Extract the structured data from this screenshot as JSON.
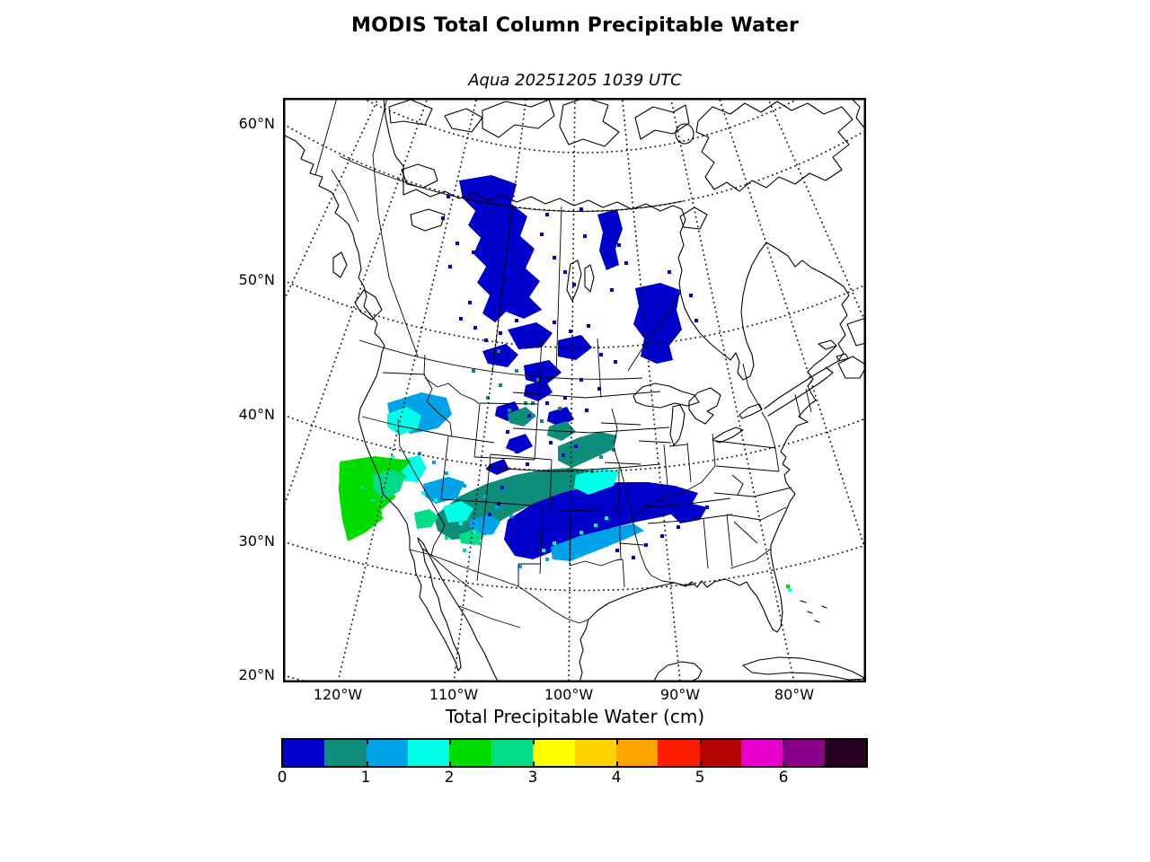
{
  "title": "MODIS Total Column Precipitable Water",
  "subtitle": "Aqua 20251205 1039 UTC",
  "map": {
    "y_ticks": [
      "60°N",
      "50°N",
      "40°N",
      "30°N",
      "20°N"
    ],
    "x_ticks": [
      "120°W",
      "110°W",
      "100°W",
      "90°W",
      "80°W"
    ]
  },
  "colorbar": {
    "title": "Total Precipitable Water (cm)",
    "tick_labels": [
      "0",
      "1",
      "2",
      "3",
      "4",
      "5",
      "6"
    ],
    "colors": [
      "#0000CC",
      "#0E8E7A",
      "#00A2E8",
      "#00FFE8",
      "#00DC00",
      "#00DC87",
      "#FFFF00",
      "#FFD300",
      "#FFA500",
      "#FB1E00",
      "#B50404",
      "#E801CE",
      "#8A0089",
      "#260020"
    ]
  },
  "chart_data": {
    "type": "heatmap",
    "title": "MODIS Total Column Precipitable Water",
    "subtitle": "Aqua 20251205 1039 UTC",
    "projection": "conic over North America",
    "x_tick_labels": [
      "120°W",
      "110°W",
      "100°W",
      "90°W",
      "80°W"
    ],
    "y_tick_labels": [
      "60°N",
      "50°N",
      "40°N",
      "30°N",
      "20°N"
    ],
    "xlim_lon": [
      -130,
      -65
    ],
    "ylim_lat": [
      20,
      62
    ],
    "grid": "dotted graticule every 10 degrees",
    "colorbar": {
      "label": "Total Precipitable Water (cm)",
      "tick_values": [
        0,
        1,
        2,
        3,
        4,
        5,
        6
      ],
      "range_cm": [
        0,
        7
      ],
      "segment_step_cm": 0.5,
      "segment_colors": [
        "#0000CC",
        "#0E8E7A",
        "#00A2E8",
        "#00FFE8",
        "#00DC00",
        "#00DC87",
        "#FFFF00",
        "#FFD300",
        "#FFA500",
        "#FB1E00",
        "#B50404",
        "#E801CE",
        "#8A0089",
        "#260020"
      ],
      "legend_position": "bottom horizontal"
    },
    "annotations": [
      {
        "region": "Northern swath: Northwest Territories / Saskatchewan / Manitoba / NW Ontario / Montana / Dakotas",
        "values_cm": "0 - 0.5 (dark blue), scattered 0.5 - 1 (teal) specks"
      },
      {
        "region": "Southwest swath: off-California Pacific, Nevada, Utah, Arizona, New Mexico, west Texas, northern Mexico",
        "values_cm": "2 - 3 (greens) over Pacific near coast; 1 - 2 (light blue / cyan) over NV-AZ; 0.5 - 1 (teal) over AZ-NM; 0 - 0.5 (dark blue) band over NM-TX"
      },
      {
        "region": "Rest of map",
        "values_cm": "no retrieval (white)"
      }
    ]
  }
}
